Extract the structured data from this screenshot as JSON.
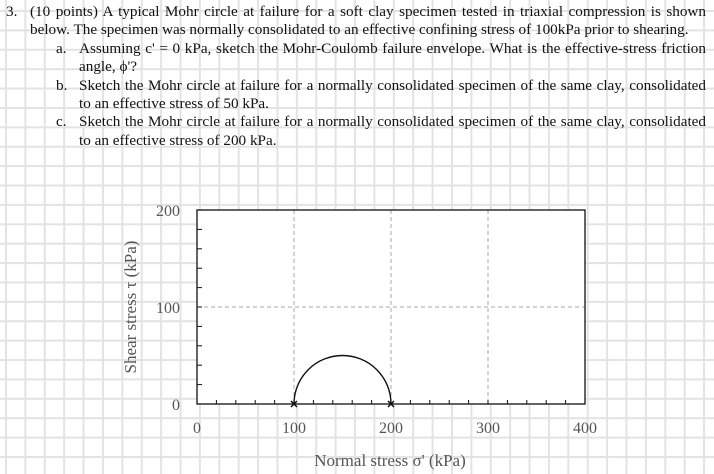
{
  "question": {
    "number": "3.",
    "stem": "(10 points) A typical Mohr circle at failure for a soft clay specimen tested in triaxial compression is shown below. The specimen was normally consolidated to an effective confining stress of 100kPa prior to shearing.",
    "parts": [
      {
        "letter": "a.",
        "text": "Assuming c' = 0 kPa, sketch the Mohr-Coulomb failure envelope. What is the effective-stress friction angle, ϕ'?"
      },
      {
        "letter": "b.",
        "text": "Sketch the Mohr circle at failure for a normally consolidated specimen of the same clay, consolidated to an effective stress of 50 kPa."
      },
      {
        "letter": "c.",
        "text": "Sketch the Mohr circle at failure for a normally consolidated specimen of the same clay, consolidated to an effective stress of 200 kPa."
      }
    ]
  },
  "chart_data": {
    "type": "line",
    "xlabel": "Normal stress σ' (kPa)",
    "ylabel": "Shear stress τ (kPa)",
    "xlim": [
      0,
      400
    ],
    "ylim": [
      0,
      200
    ],
    "xticks": [
      "0",
      "100",
      "200",
      "300",
      "400"
    ],
    "yticks": [
      "0",
      "100",
      "200"
    ],
    "grid": "dashed at major ticks",
    "mohr_circle": {
      "sigma3": 100,
      "sigma1": 200,
      "center": 150,
      "radius": 50
    },
    "points": [
      {
        "x": 100,
        "y": 0
      },
      {
        "x": 200,
        "y": 0
      }
    ]
  }
}
